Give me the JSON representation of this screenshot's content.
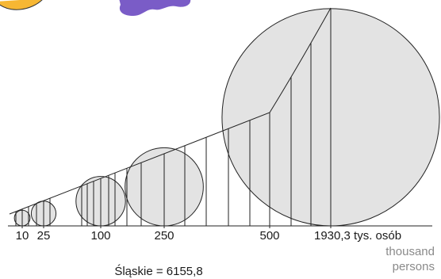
{
  "legend": {
    "ticks": [
      {
        "value": 10,
        "label": "10",
        "circle": true
      },
      {
        "value": 25,
        "label": "25",
        "circle": true
      },
      {
        "value": 100,
        "label": "100",
        "circle": true
      },
      {
        "value": 250,
        "label": "250",
        "circle": true
      },
      {
        "value": 500,
        "label": "500",
        "circle": false
      },
      {
        "value": 1930.3,
        "label": "1930,3 tys. osób",
        "circle": true
      }
    ],
    "unit_en": [
      "thousand",
      "persons"
    ],
    "total": "Śląskie = 6155,8"
  }
}
